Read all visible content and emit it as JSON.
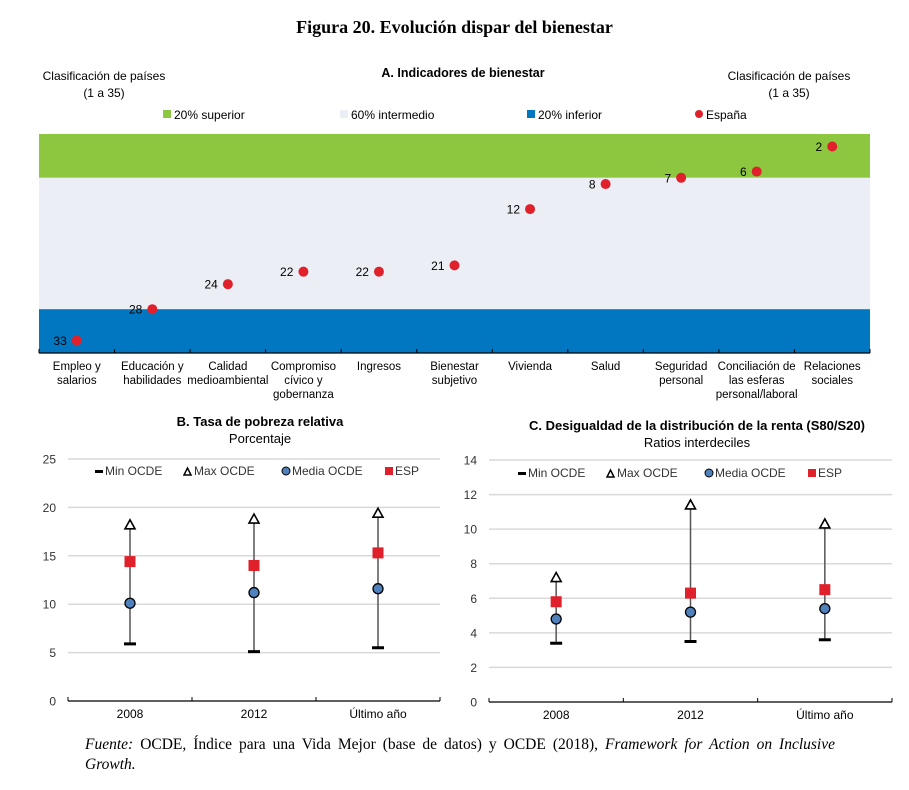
{
  "figure_title": "Figura 20. Evolución dispar del bienestar",
  "footnote": {
    "source_label": "Fuente:",
    "text_plain": " OCDE, Índice para una Vida Mejor (base de datos) y OCDE (2018), ",
    "text_italic": "Framework for Action on Inclusive Growth."
  },
  "colors": {
    "top20": "#8DC63F",
    "mid60": "#ECEEF5",
    "bottom20": "#0077C0",
    "spain_dot": "#E0202A",
    "mean_marker": "#4F81BD",
    "grid": "#D9D9D9"
  },
  "chart_data": [
    {
      "type": "scatter",
      "title": "A. Indicadores de bienestar",
      "ylabel_left": "Clasificación de países (1 a 35)",
      "ylabel_right": "Clasificación de países (1 a 35)",
      "left_label_line1": "Clasificación de países",
      "left_label_line2": "(1 a 35)",
      "right_label_line1": "Clasificación de países",
      "right_label_line2": "(1 a 35)",
      "ylim": [
        35,
        0
      ],
      "bands": [
        {
          "name": "20% superior",
          "from": 0,
          "to": 7,
          "color": "#8DC63F"
        },
        {
          "name": "60% intermedio",
          "from": 7,
          "to": 28,
          "color": "#ECEEF5"
        },
        {
          "name": "20% inferior",
          "from": 28,
          "to": 35,
          "color": "#0077C0"
        }
      ],
      "legend": [
        "20% superior",
        "60% intermedio",
        "20% inferior",
        "España"
      ],
      "legend_position": "top",
      "categories": [
        [
          "Empleo y",
          "salarios"
        ],
        [
          "Educación y",
          "habilidades"
        ],
        [
          "Calidad",
          "medioambiental"
        ],
        [
          "Compromiso",
          "cívico y",
          "gobernanza"
        ],
        [
          "Ingresos"
        ],
        [
          "Bienestar",
          "subjetivo"
        ],
        [
          "Vivienda"
        ],
        [
          "Salud"
        ],
        [
          "Seguridad",
          "personal"
        ],
        [
          "Conciliación de",
          "las esferas",
          "personal/laboral"
        ],
        [
          "Relaciones",
          "sociales"
        ]
      ],
      "series": [
        {
          "name": "España",
          "values": [
            33,
            28,
            24,
            22,
            22,
            21,
            12,
            8,
            7,
            6,
            2
          ]
        }
      ]
    },
    {
      "type": "scatter",
      "title": "B. Tasa de pobreza relativa",
      "subtitle": "Porcentaje",
      "ylim": [
        0,
        25
      ],
      "yticks": [
        "0",
        "5",
        "10",
        "15",
        "20",
        "25"
      ],
      "grid": true,
      "legend_position": "top",
      "categories": [
        "2008",
        "2012",
        "Último año"
      ],
      "series": [
        {
          "name": "Min OCDE",
          "values": [
            5.9,
            5.1,
            5.5
          ]
        },
        {
          "name": "Max OCDE",
          "values": [
            18.2,
            18.8,
            19.4
          ]
        },
        {
          "name": "Media OCDE",
          "values": [
            10.1,
            11.2,
            11.6
          ]
        },
        {
          "name": "ESP",
          "values": [
            14.4,
            14.0,
            15.3
          ]
        }
      ]
    },
    {
      "type": "scatter",
      "title": "C. Desigualdad de la distribución de la renta (S80/S20)",
      "subtitle": "Ratios interdeciles",
      "ylim": [
        0,
        14
      ],
      "yticks": [
        "0",
        "2",
        "4",
        "6",
        "8",
        "10",
        "12",
        "14"
      ],
      "grid": true,
      "legend_position": "top",
      "categories": [
        "2008",
        "2012",
        "Último año"
      ],
      "series": [
        {
          "name": "Min OCDE",
          "values": [
            3.4,
            3.5,
            3.6
          ]
        },
        {
          "name": "Max OCDE",
          "values": [
            7.2,
            11.4,
            10.3
          ]
        },
        {
          "name": "Media OCDE",
          "values": [
            4.8,
            5.2,
            5.4
          ]
        },
        {
          "name": "ESP",
          "values": [
            5.8,
            6.3,
            6.5
          ]
        }
      ]
    }
  ]
}
